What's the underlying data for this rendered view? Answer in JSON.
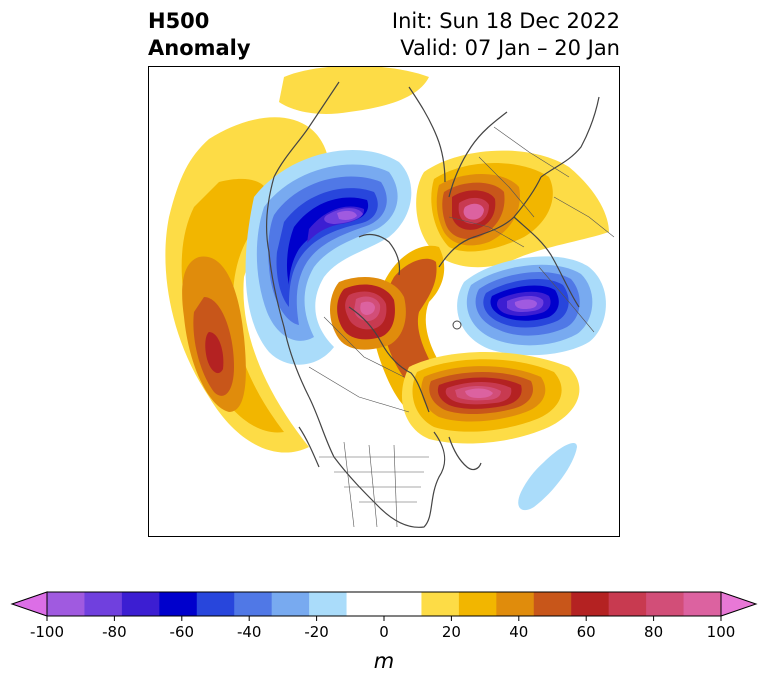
{
  "header": {
    "title_line1": "H500",
    "title_line2": "Anomaly",
    "init": "Init: Sun 18 Dec 2022",
    "valid": "Valid: 07 Jan – 20 Jan"
  },
  "colorbar": {
    "unit": "m",
    "min": -100,
    "max": 100,
    "step": 10,
    "tick_labels": [
      "-100",
      "-80",
      "-60",
      "-40",
      "-20",
      "0",
      "20",
      "40",
      "60",
      "80",
      "100"
    ],
    "tick_values": [
      -100,
      -80,
      -60,
      -40,
      -20,
      0,
      20,
      40,
      60,
      80,
      100
    ],
    "colors": [
      "#dc6ee6",
      "#a05ae0",
      "#7040de",
      "#3c1ed2",
      "#0000cc",
      "#2846dc",
      "#5078e6",
      "#78aaf0",
      "#aadcfa",
      "#ffffff",
      "#ffffff",
      "#fddc46",
      "#f2b600",
      "#e08c0c",
      "#c8561a",
      "#b42222",
      "#c83a50",
      "#d24e78",
      "#dc62a0",
      "#e878d6"
    ],
    "extend": "both"
  },
  "map": {
    "projection": "north-polar-stereographic",
    "region": "Northern Hemisphere",
    "anomaly_centers": [
      {
        "name": "north-pacific-positive",
        "max_value": 60
      },
      {
        "name": "canadian-arctic-negative",
        "min_value": -90
      },
      {
        "name": "barents-positive",
        "max_value": 100
      },
      {
        "name": "alaska-beaufort-positive",
        "max_value": 90
      },
      {
        "name": "siberia-negative",
        "min_value": -90
      },
      {
        "name": "north-atlantic-positive",
        "max_value": 100
      },
      {
        "name": "subtropical-atlantic-negative",
        "min_value": -20
      }
    ]
  }
}
